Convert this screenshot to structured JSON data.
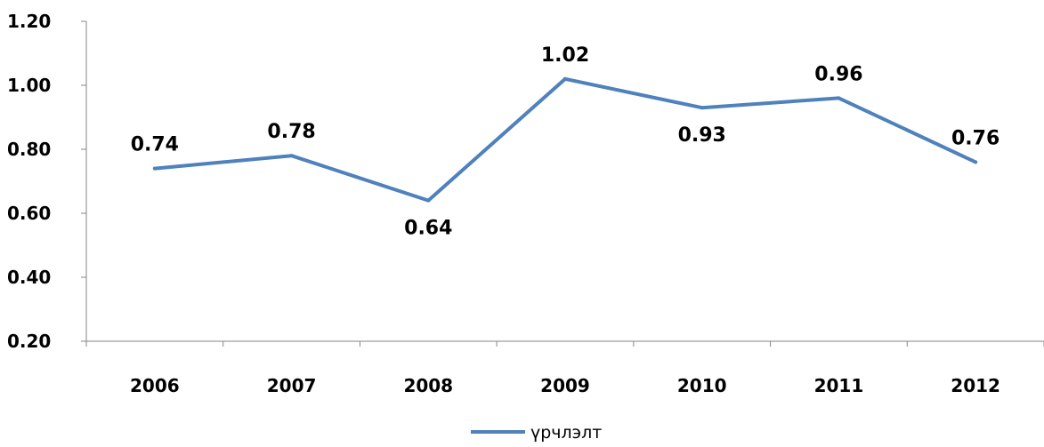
{
  "chart_data": {
    "type": "line",
    "title": "",
    "xlabel": "",
    "ylabel": "",
    "categories": [
      "2006",
      "2007",
      "2008",
      "2009",
      "2010",
      "2011",
      "2012"
    ],
    "series": [
      {
        "name": "үрчлэлт",
        "values": [
          0.74,
          0.78,
          0.64,
          1.02,
          0.93,
          0.96,
          0.76
        ],
        "data_labels": [
          "0.74",
          "0.78",
          "0.64",
          "1.02",
          "0.93",
          "0.96",
          "0.76"
        ],
        "color": "#4F81BD"
      }
    ],
    "ylim": [
      0.2,
      1.2
    ],
    "yticks": [
      "0.20",
      "0.40",
      "0.60",
      "0.80",
      "1.00",
      "1.20"
    ],
    "grid": false,
    "legend_position": "bottom"
  }
}
